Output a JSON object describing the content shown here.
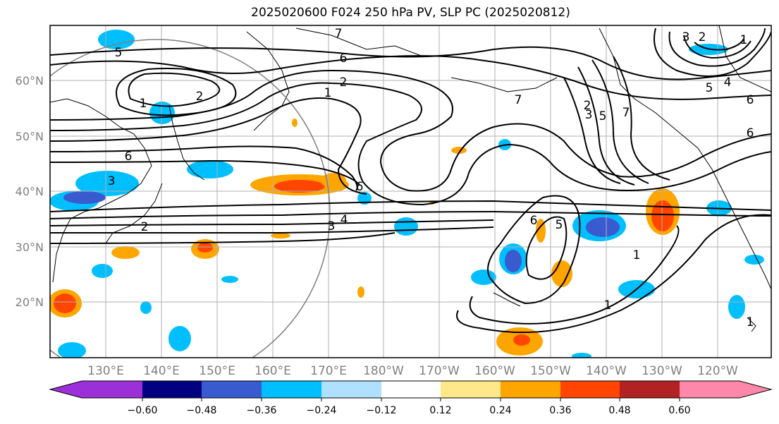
{
  "title": "2025020600 F024 250 hPa PV, SLP PC (2025020812)",
  "lat_labels": [
    "60°N",
    "50°N",
    "40°N",
    "30°N",
    "20°N"
  ],
  "lon_labels": [
    "130°E",
    "140°E",
    "150°E",
    "160°E",
    "170°E",
    "180°W",
    "170°W",
    "160°W",
    "150°W",
    "140°W",
    "130°W",
    "120°W"
  ],
  "colorbar": {
    "colors": [
      "#9b30d9",
      "#000080",
      "#3a5bd0",
      "#00bfff",
      "#b0e0ff",
      "#ffffff",
      "#ffe88a",
      "#ffa500",
      "#ff4500",
      "#b22222",
      "#ff88aa"
    ],
    "ticks": [
      "−0.60",
      "−0.48",
      "−0.36",
      "−0.24",
      "−0.12",
      "0.12",
      "0.24",
      "0.36",
      "0.48",
      "0.60"
    ]
  },
  "contour_labels": [
    "5",
    "1",
    "2",
    "6",
    "7",
    "6",
    "2",
    "1",
    "7",
    "2",
    "3",
    "5",
    "7",
    "3",
    "2",
    "1",
    "5",
    "4",
    "6",
    "6",
    "6",
    "2",
    "4",
    "3",
    "6",
    "5",
    "3",
    "1",
    "1",
    "1"
  ],
  "shading_colors": {
    "light_blue": "#00bfff",
    "mid_blue": "#3a5bd0",
    "orange": "#ffa500",
    "red_orange": "#ff4500",
    "yellow": "#ffe88a"
  }
}
